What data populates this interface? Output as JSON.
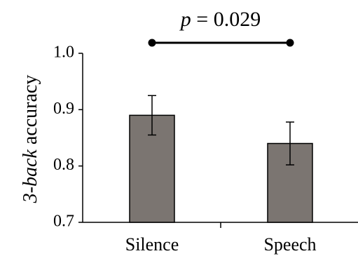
{
  "chart_data": {
    "type": "bar",
    "categories": [
      "Silence",
      "Speech"
    ],
    "values": [
      0.89,
      0.84
    ],
    "error_bars": [
      {
        "low": 0.855,
        "high": 0.925
      },
      {
        "low": 0.802,
        "high": 0.878
      }
    ],
    "ylabel_italic": "3-back",
    "ylabel_rest": " accuracy",
    "ylim": [
      0.7,
      1.0
    ],
    "yticks": [
      "0.7",
      "0.8",
      "0.9",
      "1.0"
    ],
    "ytick_values": [
      0.7,
      0.8,
      0.9,
      1.0
    ],
    "grid": false,
    "bar_color": "#7b7571",
    "annotation": {
      "p_symbol": "p",
      "p_rest": " = 0.029"
    }
  }
}
